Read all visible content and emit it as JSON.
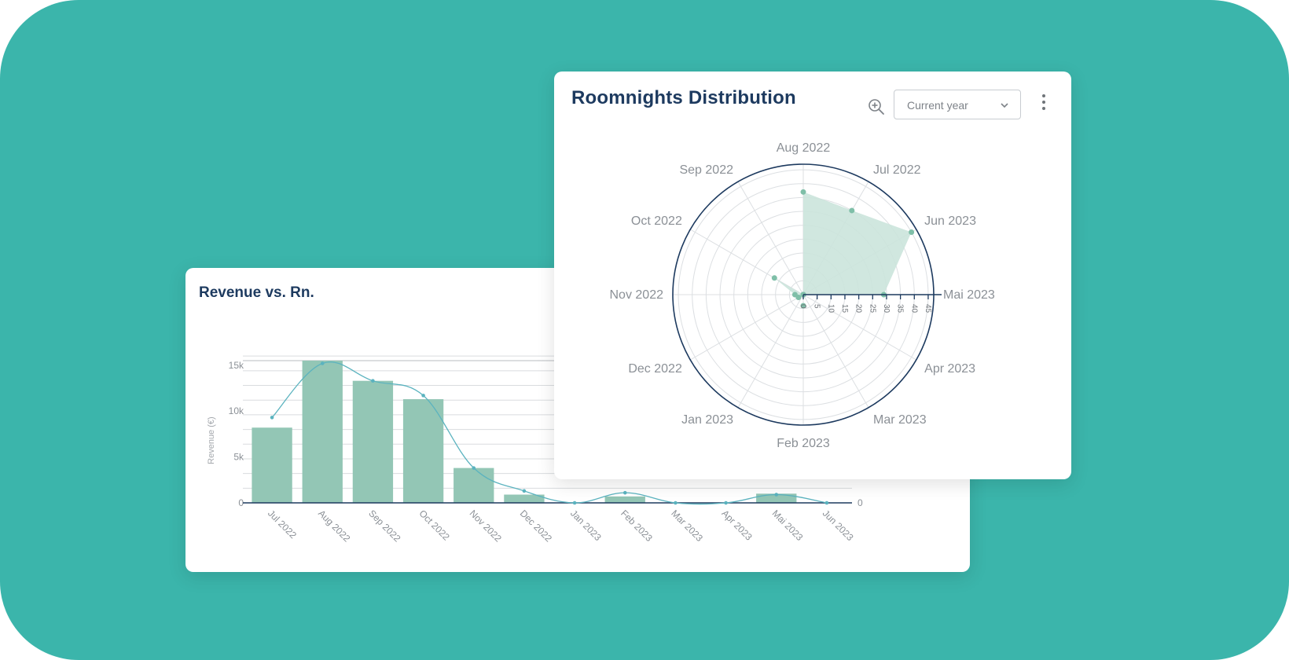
{
  "colors": {
    "background": "#3bb5ab",
    "bar": "#93c6b5",
    "line": "#5bb3bf",
    "navy": "#1d3a5f",
    "radar_fill": "#cbe4dc",
    "radar_point": "#7fbfa8"
  },
  "revenue_card": {
    "title": "Revenue vs. Rn."
  },
  "roomnights_card": {
    "title": "Roomnights Distribution",
    "zoom_icon": "zoom-in-icon",
    "period_select": {
      "value": "Current year",
      "icon": "chevron-down-icon"
    },
    "menu_icon": "more-vertical-icon"
  },
  "chart_data": [
    {
      "type": "bar",
      "title": "Revenue vs. Rn.",
      "categories": [
        "Jul 2022",
        "Aug 2022",
        "Sep 2022",
        "Oct 2022",
        "Nov 2022",
        "Dec 2022",
        "Jan 2023",
        "Feb 2023",
        "Mar 2023",
        "Apr 2023",
        "Mai 2023",
        "Jun 2023"
      ],
      "ylabel": "Revenue (€)",
      "ylim": [
        0,
        15500
      ],
      "yticks": [
        0,
        5000,
        10000,
        15000
      ],
      "ytick_labels": [
        "0",
        "5k",
        "10k",
        "15k"
      ],
      "right_axis_tick_labels": [
        "0"
      ],
      "grid": true,
      "series": [
        {
          "type": "bar",
          "values": [
            8200,
            15500,
            13300,
            11300,
            3800,
            900,
            0,
            700,
            0,
            0,
            1000,
            0
          ]
        },
        {
          "type": "line",
          "values": [
            9300,
            15200,
            13300,
            11700,
            3800,
            1300,
            0,
            1100,
            0,
            0,
            900,
            0
          ]
        }
      ]
    },
    {
      "type": "radar",
      "title": "Roomnights Distribution",
      "categories": [
        "Mai 2023",
        "Jun 2023",
        "Jul 2022",
        "Aug 2022",
        "Sep 2022",
        "Oct 2022",
        "Nov 2022",
        "Dec 2022",
        "Jan 2023",
        "Feb 2023",
        "Mar 2023",
        "Apr 2023"
      ],
      "values": [
        29,
        45,
        35,
        37,
        0,
        12,
        3,
        2,
        0,
        4,
        0,
        0
      ],
      "rlim": [
        0,
        47
      ],
      "rticks": [
        0,
        5,
        10,
        15,
        20,
        25,
        30,
        35,
        40,
        45
      ],
      "rtick_labels": [
        "0",
        "5",
        "10",
        "15",
        "20",
        "25",
        "30",
        "35",
        "40",
        "45"
      ],
      "grid": true
    }
  ]
}
